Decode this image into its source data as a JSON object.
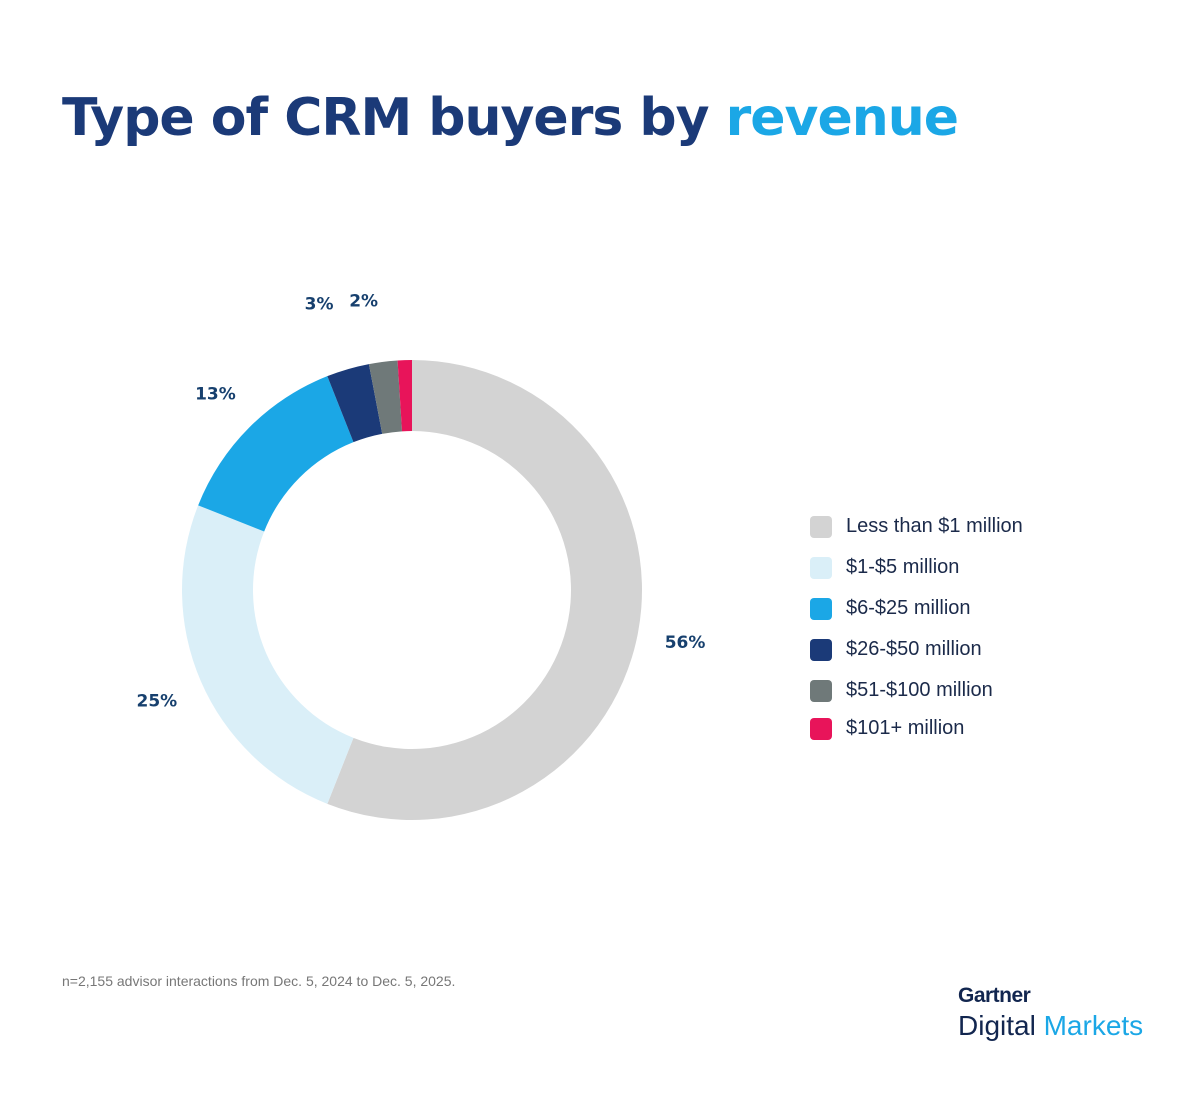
{
  "title": {
    "main": "Type of CRM buyers by",
    "accent": "revenue"
  },
  "chart_data": {
    "type": "pie",
    "donut": true,
    "title": "Type of CRM buyers by revenue",
    "categories": [
      "Less than $1 million",
      "$1-$5 million",
      "$6-$25 million",
      "$26-$50 million",
      "$51-$100 million",
      "$101+ million"
    ],
    "values": [
      56,
      25,
      13,
      3,
      2,
      1
    ],
    "data_labels": [
      "56%",
      "25%",
      "13%",
      "3%",
      "2%",
      ""
    ],
    "colors": [
      "#d3d3d3",
      "#daeff8",
      "#1ba7e6",
      "#1b3a78",
      "#6f7979",
      "#e8145a"
    ],
    "legend_position": "right"
  },
  "footnote": "n=2,155 advisor interactions from Dec. 5, 2024 to Dec. 5, 2025.",
  "logo": {
    "brand": "Gartner",
    "product_1": "Digital",
    "product_2": "Markets"
  }
}
